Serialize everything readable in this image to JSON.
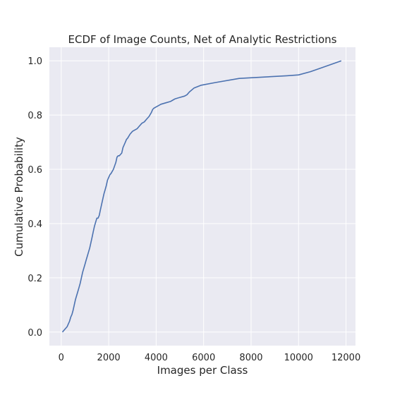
{
  "chart_data": {
    "type": "line",
    "title": "ECDF of Image Counts, Net of Analytic Restrictions",
    "xlabel": "Images per Class",
    "ylabel": "Cumulative Probability",
    "xlim": [
      -500,
      12400
    ],
    "ylim": [
      -0.05,
      1.05
    ],
    "xticks": [
      0,
      2000,
      4000,
      6000,
      8000,
      10000,
      12000
    ],
    "yticks": [
      0.0,
      0.2,
      0.4,
      0.6,
      0.8,
      1.0
    ],
    "xtick_labels": [
      "0",
      "2000",
      "4000",
      "6000",
      "8000",
      "10000",
      "12000"
    ],
    "ytick_labels": [
      "0.0",
      "0.2",
      "0.4",
      "0.6",
      "0.8",
      "1.0"
    ],
    "grid": true,
    "style": {
      "background": "#eaeaf2",
      "grid_color": "#ffffff",
      "line_color": "#4c72b0"
    },
    "series": [
      {
        "x": [
          50,
          150,
          250,
          300,
          350,
          400,
          450,
          500,
          550,
          600,
          650,
          700,
          750,
          800,
          850,
          900,
          950,
          1000,
          1050,
          1100,
          1150,
          1200,
          1250,
          1300,
          1350,
          1400,
          1450,
          1500,
          1550,
          1600,
          1650,
          1700,
          1750,
          1800,
          1850,
          1900,
          1950,
          2000,
          2050,
          2100,
          2200,
          2300,
          2350,
          2400,
          2450,
          2500,
          2550,
          2600,
          2650,
          2700,
          2750,
          2800,
          2900,
          3000,
          3100,
          3200,
          3300,
          3400,
          3500,
          3600,
          3700,
          3800,
          3850,
          3900,
          4000,
          4100,
          4200,
          4400,
          4600,
          4700,
          4800,
          5000,
          5200,
          5300,
          5400,
          5600,
          5900,
          6500,
          7500,
          8500,
          9500,
          10000,
          10500,
          11000,
          11800
        ],
        "y": [
          0.0,
          0.01,
          0.02,
          0.03,
          0.04,
          0.055,
          0.065,
          0.08,
          0.1,
          0.12,
          0.135,
          0.15,
          0.165,
          0.18,
          0.2,
          0.22,
          0.235,
          0.25,
          0.265,
          0.28,
          0.295,
          0.31,
          0.33,
          0.35,
          0.37,
          0.39,
          0.405,
          0.42,
          0.42,
          0.43,
          0.45,
          0.47,
          0.49,
          0.51,
          0.525,
          0.54,
          0.56,
          0.57,
          0.58,
          0.585,
          0.6,
          0.625,
          0.645,
          0.65,
          0.65,
          0.655,
          0.66,
          0.68,
          0.69,
          0.7,
          0.71,
          0.715,
          0.73,
          0.74,
          0.745,
          0.75,
          0.76,
          0.77,
          0.775,
          0.785,
          0.795,
          0.81,
          0.82,
          0.825,
          0.83,
          0.835,
          0.84,
          0.845,
          0.85,
          0.855,
          0.86,
          0.865,
          0.87,
          0.875,
          0.885,
          0.9,
          0.91,
          0.92,
          0.935,
          0.94,
          0.945,
          0.948,
          0.96,
          0.975,
          1.0
        ]
      }
    ]
  }
}
